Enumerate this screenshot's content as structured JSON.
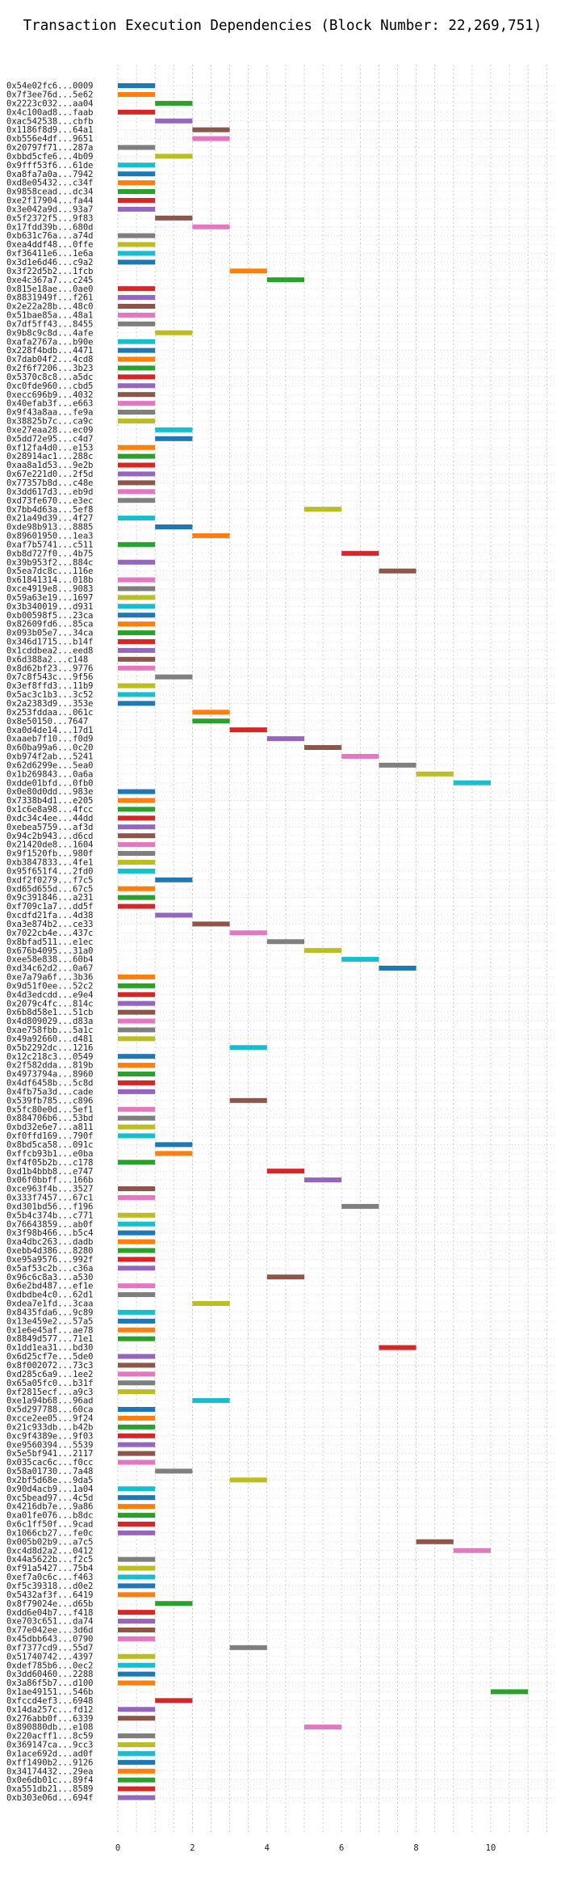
{
  "chart_data": {
    "type": "bar",
    "title": "Transaction Execution Dependencies (Block Number: 22,269,751)",
    "xlabel": "",
    "ylabel": "",
    "xlim": [
      0,
      11.7
    ],
    "xticks": [
      0,
      2,
      4,
      6,
      8,
      10
    ],
    "grid": true,
    "legend": "none",
    "palette": [
      "#1f77b4",
      "#ff7f0e",
      "#2ca02c",
      "#d62728",
      "#9467bd",
      "#8c564b",
      "#e377c2",
      "#7f7f7f",
      "#bcbd22",
      "#17becf"
    ],
    "bars": [
      {
        "label": "0x54e02fc6...0009",
        "start": 0,
        "end": 1
      },
      {
        "label": "0x7f3ee76d...5e62",
        "start": 0,
        "end": 1
      },
      {
        "label": "0x2223c032...aa04",
        "start": 1,
        "end": 2
      },
      {
        "label": "0x4c100ad8...faab",
        "start": 0,
        "end": 1
      },
      {
        "label": "0xac542538...cbfb",
        "start": 1,
        "end": 2
      },
      {
        "label": "0x1186f8d9...64a1",
        "start": 2,
        "end": 3
      },
      {
        "label": "0xb556e4df...9651",
        "start": 2,
        "end": 3
      },
      {
        "label": "0x20797f71...287a",
        "start": 0,
        "end": 1
      },
      {
        "label": "0xbbd5cfe6...4b09",
        "start": 1,
        "end": 2
      },
      {
        "label": "0x9fff53f6...61de",
        "start": 0,
        "end": 1
      },
      {
        "label": "0xa8fa7a0a...7942",
        "start": 0,
        "end": 1
      },
      {
        "label": "0xd8e05432...c34f",
        "start": 0,
        "end": 1
      },
      {
        "label": "0x9858cead...dc34",
        "start": 0,
        "end": 1
      },
      {
        "label": "0xe2f17904...fa44",
        "start": 0,
        "end": 1
      },
      {
        "label": "0x3e042a9d...93a7",
        "start": 0,
        "end": 1
      },
      {
        "label": "0x5f2372f5...9f83",
        "start": 1,
        "end": 2
      },
      {
        "label": "0x17fdd39b...680d",
        "start": 2,
        "end": 3
      },
      {
        "label": "0xb631c76a...a74d",
        "start": 0,
        "end": 1
      },
      {
        "label": "0xea4ddf48...0ffe",
        "start": 0,
        "end": 1
      },
      {
        "label": "0xf36411e6...1e6a",
        "start": 0,
        "end": 1
      },
      {
        "label": "0x3d1e6d46...c9a2",
        "start": 0,
        "end": 1
      },
      {
        "label": "0x3f22d5b2...1fcb",
        "start": 3,
        "end": 4
      },
      {
        "label": "0xe4c367a7...c245",
        "start": 4,
        "end": 5
      },
      {
        "label": "0x815e18ae...0ae0",
        "start": 0,
        "end": 1
      },
      {
        "label": "0x8831949f...f261",
        "start": 0,
        "end": 1
      },
      {
        "label": "0x2e22a28b...48c0",
        "start": 0,
        "end": 1
      },
      {
        "label": "0x51bae85a...48a1",
        "start": 0,
        "end": 1
      },
      {
        "label": "0x7df5ff43...8455",
        "start": 0,
        "end": 1
      },
      {
        "label": "0x9b8c9c8d...4afe",
        "start": 1,
        "end": 2
      },
      {
        "label": "0xafa2767a...b90e",
        "start": 0,
        "end": 1
      },
      {
        "label": "0x228f4bdb...4471",
        "start": 0,
        "end": 1
      },
      {
        "label": "0x7dab04f2...4cd8",
        "start": 0,
        "end": 1
      },
      {
        "label": "0x2f6f7206...3b23",
        "start": 0,
        "end": 1
      },
      {
        "label": "0x5370c8c8...a5dc",
        "start": 0,
        "end": 1
      },
      {
        "label": "0xc0fde960...cbd5",
        "start": 0,
        "end": 1
      },
      {
        "label": "0xecc696b9...4032",
        "start": 0,
        "end": 1
      },
      {
        "label": "0x40efab3f...e663",
        "start": 0,
        "end": 1
      },
      {
        "label": "0x9f43a8aa...fe9a",
        "start": 0,
        "end": 1
      },
      {
        "label": "0x38825b7c...ca9c",
        "start": 0,
        "end": 1
      },
      {
        "label": "0xe27eaa28...ec09",
        "start": 1,
        "end": 2
      },
      {
        "label": "0x5dd72e95...c4d7",
        "start": 1,
        "end": 2
      },
      {
        "label": "0xf12fa4d0...e153",
        "start": 0,
        "end": 1
      },
      {
        "label": "0x28914ac1...288c",
        "start": 0,
        "end": 1
      },
      {
        "label": "0xaa8a1d53...9e2b",
        "start": 0,
        "end": 1
      },
      {
        "label": "0x67e221d0...2f5d",
        "start": 0,
        "end": 1
      },
      {
        "label": "0x77357b8d...c48e",
        "start": 0,
        "end": 1
      },
      {
        "label": "0x3dd617d3...eb9d",
        "start": 0,
        "end": 1
      },
      {
        "label": "0xd73fe670...e3ec",
        "start": 0,
        "end": 1
      },
      {
        "label": "0x7bb4d63a...5ef8",
        "start": 5,
        "end": 6
      },
      {
        "label": "0x21a49d39...4f27",
        "start": 0,
        "end": 1
      },
      {
        "label": "0xde98b913...8885",
        "start": 1,
        "end": 2
      },
      {
        "label": "0x89601950...1ea3",
        "start": 2,
        "end": 3
      },
      {
        "label": "0xaf7b5741...c511",
        "start": 0,
        "end": 1
      },
      {
        "label": "0xb8d727f0...4b75",
        "start": 6,
        "end": 7
      },
      {
        "label": "0x39b953f2...884c",
        "start": 0,
        "end": 1
      },
      {
        "label": "0x5ea7dc8c...116e",
        "start": 7,
        "end": 8
      },
      {
        "label": "0x61841314...018b",
        "start": 0,
        "end": 1
      },
      {
        "label": "0xce4919e8...9083",
        "start": 0,
        "end": 1
      },
      {
        "label": "0x59a63e19...1697",
        "start": 0,
        "end": 1
      },
      {
        "label": "0x3b340019...d931",
        "start": 0,
        "end": 1
      },
      {
        "label": "0xb00598f5...23ca",
        "start": 0,
        "end": 1
      },
      {
        "label": "0x82609fd6...85ca",
        "start": 0,
        "end": 1
      },
      {
        "label": "0x093b05e7...34ca",
        "start": 0,
        "end": 1
      },
      {
        "label": "0x346d1715...b14f",
        "start": 0,
        "end": 1
      },
      {
        "label": "0x1cddbea2...eed8",
        "start": 0,
        "end": 1
      },
      {
        "label": "0x6d388a2...c148",
        "start": 0,
        "end": 1
      },
      {
        "label": "0x8d62bf23...9776",
        "start": 0,
        "end": 1
      },
      {
        "label": "0x7c8f543c...9f56",
        "start": 1,
        "end": 2
      },
      {
        "label": "0x3ef8ffd3...11b9",
        "start": 0,
        "end": 1
      },
      {
        "label": "0x5ac3c1b3...3c52",
        "start": 0,
        "end": 1
      },
      {
        "label": "0x2a2383d9...353e",
        "start": 0,
        "end": 1
      },
      {
        "label": "0x253fddaa...061c",
        "start": 2,
        "end": 3
      },
      {
        "label": "0x8e50150...7647",
        "start": 2,
        "end": 3
      },
      {
        "label": "0xa0d4de14...17d1",
        "start": 3,
        "end": 4
      },
      {
        "label": "0xaaeb7f10...f0d9",
        "start": 4,
        "end": 5
      },
      {
        "label": "0x60ba99a6...0c20",
        "start": 5,
        "end": 6
      },
      {
        "label": "0xb974f2ab...5241",
        "start": 6,
        "end": 7
      },
      {
        "label": "0x62d6299e...5ea0",
        "start": 7,
        "end": 8
      },
      {
        "label": "0x1b269843...0a6a",
        "start": 8,
        "end": 9
      },
      {
        "label": "0xdde01bfd...0fb0",
        "start": 9,
        "end": 10
      },
      {
        "label": "0x0e80d0dd...983e",
        "start": 0,
        "end": 1
      },
      {
        "label": "0x7338b4d1...e205",
        "start": 0,
        "end": 1
      },
      {
        "label": "0x1c6e8a98...4fcc",
        "start": 0,
        "end": 1
      },
      {
        "label": "0xdc34c4ee...44dd",
        "start": 0,
        "end": 1
      },
      {
        "label": "0xebea5759...af3d",
        "start": 0,
        "end": 1
      },
      {
        "label": "0x94c2b943...d6cd",
        "start": 0,
        "end": 1
      },
      {
        "label": "0x21420de8...1604",
        "start": 0,
        "end": 1
      },
      {
        "label": "0x9f1520fb...980f",
        "start": 0,
        "end": 1
      },
      {
        "label": "0xb3847833...4fe1",
        "start": 0,
        "end": 1
      },
      {
        "label": "0x95f651f4...2fd0",
        "start": 0,
        "end": 1
      },
      {
        "label": "0xdf2f0279...f7c5",
        "start": 1,
        "end": 2
      },
      {
        "label": "0xd65d655d...67c5",
        "start": 0,
        "end": 1
      },
      {
        "label": "0x9c391846...a231",
        "start": 0,
        "end": 1
      },
      {
        "label": "0xf709c1a7...dd5f",
        "start": 0,
        "end": 1
      },
      {
        "label": "0xcdfd21fa...4d38",
        "start": 1,
        "end": 2
      },
      {
        "label": "0xa3e874b2...ce33",
        "start": 2,
        "end": 3
      },
      {
        "label": "0x7022cb4e...437c",
        "start": 3,
        "end": 4
      },
      {
        "label": "0x8bfad511...e1ec",
        "start": 4,
        "end": 5
      },
      {
        "label": "0x676b4095...31a0",
        "start": 5,
        "end": 6
      },
      {
        "label": "0xee58e838...60b4",
        "start": 6,
        "end": 7
      },
      {
        "label": "0xd34c62d2...0a67",
        "start": 7,
        "end": 8
      },
      {
        "label": "0xe7a79a6f...3b36",
        "start": 0,
        "end": 1
      },
      {
        "label": "0x9d51f0ee...52c2",
        "start": 0,
        "end": 1
      },
      {
        "label": "0x4d3edcdd...e9e4",
        "start": 0,
        "end": 1
      },
      {
        "label": "0x2079c4fc...814c",
        "start": 0,
        "end": 1
      },
      {
        "label": "0x6b8d58e1...51cb",
        "start": 0,
        "end": 1
      },
      {
        "label": "0x4d809029...d83a",
        "start": 0,
        "end": 1
      },
      {
        "label": "0xae758fbb...5a1c",
        "start": 0,
        "end": 1
      },
      {
        "label": "0x49a92660...d481",
        "start": 0,
        "end": 1
      },
      {
        "label": "0x5b2292dc...1216",
        "start": 3,
        "end": 4
      },
      {
        "label": "0x12c218c3...0549",
        "start": 0,
        "end": 1
      },
      {
        "label": "0x2f582dda...819b",
        "start": 0,
        "end": 1
      },
      {
        "label": "0x4973794a...8960",
        "start": 0,
        "end": 1
      },
      {
        "label": "0x4df6458b...5c8d",
        "start": 0,
        "end": 1
      },
      {
        "label": "0x4fb75a3d...cade",
        "start": 0,
        "end": 1
      },
      {
        "label": "0x539fb785...c896",
        "start": 3,
        "end": 4
      },
      {
        "label": "0x5fc80e0d...5ef1",
        "start": 0,
        "end": 1
      },
      {
        "label": "0x884706b6...53bd",
        "start": 0,
        "end": 1
      },
      {
        "label": "0xbd32e6e7...a811",
        "start": 0,
        "end": 1
      },
      {
        "label": "0xf0ffd169...790f",
        "start": 0,
        "end": 1
      },
      {
        "label": "0x8bd5ca58...091c",
        "start": 1,
        "end": 2
      },
      {
        "label": "0xffcb93b1...e0ba",
        "start": 1,
        "end": 2
      },
      {
        "label": "0xf4f05b2b...c178",
        "start": 0,
        "end": 1
      },
      {
        "label": "0xd1b4bbb8...e747",
        "start": 4,
        "end": 5
      },
      {
        "label": "0x06f0bbff...166b",
        "start": 5,
        "end": 6
      },
      {
        "label": "0xce963f4b...3527",
        "start": 0,
        "end": 1
      },
      {
        "label": "0x333f7457...67c1",
        "start": 0,
        "end": 1
      },
      {
        "label": "0xd301bd56...f196",
        "start": 6,
        "end": 7
      },
      {
        "label": "0x5b4c374b...c771",
        "start": 0,
        "end": 1
      },
      {
        "label": "0x76643859...ab0f",
        "start": 0,
        "end": 1
      },
      {
        "label": "0x3f98b466...b5c4",
        "start": 0,
        "end": 1
      },
      {
        "label": "0xa4dbc263...dadb",
        "start": 0,
        "end": 1
      },
      {
        "label": "0xebb4d386...8280",
        "start": 0,
        "end": 1
      },
      {
        "label": "0xe95a9576...992f",
        "start": 0,
        "end": 1
      },
      {
        "label": "0x5af53c2b...c36a",
        "start": 0,
        "end": 1
      },
      {
        "label": "0x96c6c8a3...a530",
        "start": 4,
        "end": 5
      },
      {
        "label": "0x6e2bd487...ef1e",
        "start": 0,
        "end": 1
      },
      {
        "label": "0xdbdbe4c0...62d1",
        "start": 0,
        "end": 1
      },
      {
        "label": "0xdea7e1fd...3caa",
        "start": 2,
        "end": 3
      },
      {
        "label": "0x8435fda6...9c89",
        "start": 0,
        "end": 1
      },
      {
        "label": "0x13e459e2...57a5",
        "start": 0,
        "end": 1
      },
      {
        "label": "0x1e6e45af...ae78",
        "start": 0,
        "end": 1
      },
      {
        "label": "0x8849d577...71e1",
        "start": 0,
        "end": 1
      },
      {
        "label": "0x1dd1ea31...bd30",
        "start": 7,
        "end": 8
      },
      {
        "label": "0x6d25cf7e...5de0",
        "start": 0,
        "end": 1
      },
      {
        "label": "0x8f002072...73c3",
        "start": 0,
        "end": 1
      },
      {
        "label": "0xd285c6a9...1ee2",
        "start": 0,
        "end": 1
      },
      {
        "label": "0x65a05fc0...b31f",
        "start": 0,
        "end": 1
      },
      {
        "label": "0xf2815ecf...a9c3",
        "start": 0,
        "end": 1
      },
      {
        "label": "0xe1a94b68...96ad",
        "start": 2,
        "end": 3
      },
      {
        "label": "0x5d297788...60ca",
        "start": 0,
        "end": 1
      },
      {
        "label": "0xcce2ee05...9f24",
        "start": 0,
        "end": 1
      },
      {
        "label": "0x21c933db...b42b",
        "start": 0,
        "end": 1
      },
      {
        "label": "0xc9f4389e...9f03",
        "start": 0,
        "end": 1
      },
      {
        "label": "0xe9560394...5539",
        "start": 0,
        "end": 1
      },
      {
        "label": "0x5e5bf941...2117",
        "start": 0,
        "end": 1
      },
      {
        "label": "0x035cac6c...f0cc",
        "start": 0,
        "end": 1
      },
      {
        "label": "0x58a01730...7a48",
        "start": 1,
        "end": 2
      },
      {
        "label": "0x2bf5d68e...9da5",
        "start": 3,
        "end": 4
      },
      {
        "label": "0x90d4acb9...1a04",
        "start": 0,
        "end": 1
      },
      {
        "label": "0xc5bead97...4c5d",
        "start": 0,
        "end": 1
      },
      {
        "label": "0x4216db7e...9a86",
        "start": 0,
        "end": 1
      },
      {
        "label": "0xa01fe076...b8dc",
        "start": 0,
        "end": 1
      },
      {
        "label": "0x6c1ff50f...9cad",
        "start": 0,
        "end": 1
      },
      {
        "label": "0x1066cb27...fe0c",
        "start": 0,
        "end": 1
      },
      {
        "label": "0x005b02b9...a7c5",
        "start": 8,
        "end": 9
      },
      {
        "label": "0xc4d8d2a2...0412",
        "start": 9,
        "end": 10
      },
      {
        "label": "0x44a5622b...f2c5",
        "start": 0,
        "end": 1
      },
      {
        "label": "0xf91a5427...75b4",
        "start": 0,
        "end": 1
      },
      {
        "label": "0xef7a0c6c...f463",
        "start": 0,
        "end": 1
      },
      {
        "label": "0xf5c39318...d0e2",
        "start": 0,
        "end": 1
      },
      {
        "label": "0x5432af3f...6419",
        "start": 0,
        "end": 1
      },
      {
        "label": "0x8f79024e...d65b",
        "start": 1,
        "end": 2
      },
      {
        "label": "0xdd6e04b7...f418",
        "start": 0,
        "end": 1
      },
      {
        "label": "0xe703c651...da74",
        "start": 0,
        "end": 1
      },
      {
        "label": "0x77e042ee...3d6d",
        "start": 0,
        "end": 1
      },
      {
        "label": "0x45dbb643...0790",
        "start": 0,
        "end": 1
      },
      {
        "label": "0xf7377cd9...55d7",
        "start": 3,
        "end": 4
      },
      {
        "label": "0x51740742...4397",
        "start": 0,
        "end": 1
      },
      {
        "label": "0xdef785b6...0ec2",
        "start": 0,
        "end": 1
      },
      {
        "label": "0x3dd60460...2288",
        "start": 0,
        "end": 1
      },
      {
        "label": "0x3a86f5b7...d100",
        "start": 0,
        "end": 1
      },
      {
        "label": "0x1ae49151...546b",
        "start": 10,
        "end": 11
      },
      {
        "label": "0xfccd4ef3...6948",
        "start": 1,
        "end": 2
      },
      {
        "label": "0x14da257c...fd12",
        "start": 0,
        "end": 1
      },
      {
        "label": "0x276abb0f...6339",
        "start": 0,
        "end": 1
      },
      {
        "label": "0x890880db...e108",
        "start": 5,
        "end": 6
      },
      {
        "label": "0x220acff1...8c59",
        "start": 0,
        "end": 1
      },
      {
        "label": "0x369147ca...9cc3",
        "start": 0,
        "end": 1
      },
      {
        "label": "0x1ace692d...ad0f",
        "start": 0,
        "end": 1
      },
      {
        "label": "0xff1490b2...9126",
        "start": 0,
        "end": 1
      },
      {
        "label": "0x34174432...29ea",
        "start": 0,
        "end": 1
      },
      {
        "label": "0x0e6db01c...89f4",
        "start": 0,
        "end": 1
      },
      {
        "label": "0xa551db21...8589",
        "start": 0,
        "end": 1
      },
      {
        "label": "0xb303e06d...694f",
        "start": 0,
        "end": 1
      }
    ]
  }
}
